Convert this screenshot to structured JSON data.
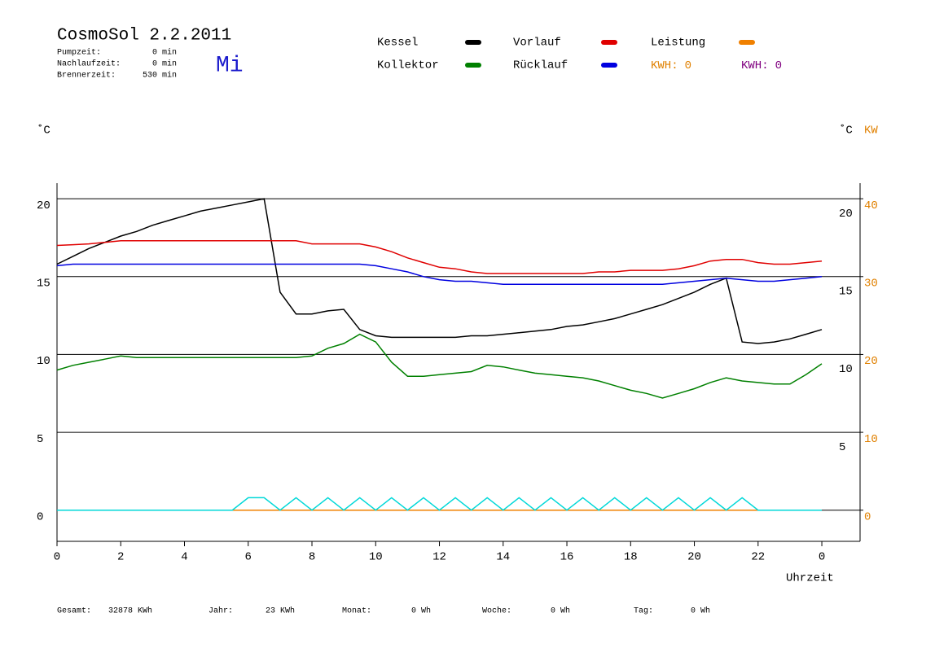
{
  "header": {
    "title": "CosmoSol 2.2.2011",
    "day": "Mi",
    "stats": [
      {
        "label": "Pumpzeit:",
        "value": "0 min"
      },
      {
        "label": "Nachlaufzeit:",
        "value": "0 min"
      },
      {
        "label": "Brennerzeit:",
        "value": "530 min"
      }
    ]
  },
  "chart_data": {
    "type": "line",
    "y_label": "˚C",
    "y2_label_left": "˚C",
    "y2_label": "KW",
    "x_label": "Uhrzeit",
    "x": [
      0,
      0.5,
      1,
      1.5,
      2,
      2.5,
      3,
      3.5,
      4,
      4.5,
      5,
      5.5,
      6,
      6.5,
      7,
      7.5,
      8,
      8.5,
      9,
      9.5,
      10,
      10.5,
      11,
      11.5,
      12,
      12.5,
      13,
      13.5,
      14,
      14.5,
      15,
      15.5,
      16,
      16.5,
      17,
      17.5,
      18,
      18.5,
      19,
      19.5,
      20,
      20.5,
      21,
      21.5,
      22,
      22.5,
      23,
      23.5,
      24
    ],
    "xlim": [
      0,
      25.2
    ],
    "xticks": [
      0,
      2,
      4,
      6,
      8,
      10,
      12,
      14,
      16,
      18,
      20,
      22,
      {
        "value": 24,
        "label": "0"
      }
    ],
    "ylim": [
      -2,
      21
    ],
    "yticks": [
      0,
      5,
      10,
      15,
      20
    ],
    "y3ticks": [
      5,
      10,
      15,
      20
    ],
    "y2lim": [
      -4,
      42
    ],
    "y2ticks": [
      0,
      10,
      20,
      30,
      40
    ],
    "y2color": "#e08000",
    "series": [
      {
        "name": "Kessel",
        "color": "#000000",
        "values": [
          15.8,
          16.3,
          16.8,
          17.2,
          17.6,
          17.9,
          18.3,
          18.6,
          18.9,
          19.2,
          19.4,
          19.6,
          19.8,
          20.0,
          14.0,
          12.6,
          12.6,
          12.8,
          12.9,
          11.6,
          11.2,
          11.1,
          11.1,
          11.1,
          11.1,
          11.1,
          11.2,
          11.2,
          11.3,
          11.4,
          11.5,
          11.6,
          11.8,
          11.9,
          12.1,
          12.3,
          12.6,
          12.9,
          13.2,
          13.6,
          14.0,
          14.5,
          14.9,
          10.8,
          10.7,
          10.8,
          11.0,
          11.3,
          11.6
        ]
      },
      {
        "name": "Vorlauf",
        "color": "#e00000",
        "values": [
          17.0,
          17.05,
          17.1,
          17.2,
          17.3,
          17.3,
          17.3,
          17.3,
          17.3,
          17.3,
          17.3,
          17.3,
          17.3,
          17.3,
          17.3,
          17.3,
          17.1,
          17.1,
          17.1,
          17.1,
          16.9,
          16.6,
          16.2,
          15.9,
          15.6,
          15.5,
          15.3,
          15.2,
          15.2,
          15.2,
          15.2,
          15.2,
          15.2,
          15.2,
          15.3,
          15.3,
          15.4,
          15.4,
          15.4,
          15.5,
          15.7,
          16.0,
          16.1,
          16.1,
          15.9,
          15.8,
          15.8,
          15.9,
          16.0
        ]
      },
      {
        "name": "Leistung",
        "color": "#f08000",
        "axis": "y2",
        "values": [
          0,
          0,
          0,
          0,
          0,
          0,
          0,
          0,
          0,
          0,
          0,
          0,
          0,
          0,
          0,
          0,
          0,
          0,
          0,
          0,
          0,
          0,
          0,
          0,
          0,
          0,
          0,
          0,
          0,
          0,
          0,
          0,
          0,
          0,
          0,
          0,
          0,
          0,
          0,
          0,
          0,
          0,
          0,
          0,
          0,
          0,
          0,
          0,
          0
        ]
      },
      {
        "name": "Kollektor",
        "color": "#008000",
        "values": [
          9.0,
          9.3,
          9.5,
          9.7,
          9.9,
          9.8,
          9.8,
          9.8,
          9.8,
          9.8,
          9.8,
          9.8,
          9.8,
          9.8,
          9.8,
          9.8,
          9.9,
          10.4,
          10.7,
          11.3,
          10.8,
          9.5,
          8.6,
          8.6,
          8.7,
          8.8,
          8.9,
          9.3,
          9.2,
          9.0,
          8.8,
          8.7,
          8.6,
          8.5,
          8.3,
          8.0,
          7.7,
          7.5,
          7.2,
          7.5,
          7.8,
          8.2,
          8.5,
          8.3,
          8.2,
          8.1,
          8.1,
          8.7,
          9.4
        ]
      },
      {
        "name": "Rücklauf",
        "color": "#0000e0",
        "values": [
          15.7,
          15.8,
          15.8,
          15.8,
          15.8,
          15.8,
          15.8,
          15.8,
          15.8,
          15.8,
          15.8,
          15.8,
          15.8,
          15.8,
          15.8,
          15.8,
          15.8,
          15.8,
          15.8,
          15.8,
          15.7,
          15.5,
          15.3,
          15.0,
          14.8,
          14.7,
          14.7,
          14.6,
          14.5,
          14.5,
          14.5,
          14.5,
          14.5,
          14.5,
          14.5,
          14.5,
          14.5,
          14.5,
          14.5,
          14.6,
          14.7,
          14.8,
          14.9,
          14.8,
          14.7,
          14.7,
          14.8,
          14.9,
          15.0
        ]
      },
      {
        "color": "#00d8d8",
        "values": [
          0,
          0,
          0,
          0,
          0,
          0,
          0,
          0,
          0,
          0,
          0,
          0,
          0.8,
          0.8,
          0,
          0.8,
          0,
          0.8,
          0,
          0.8,
          0,
          0.8,
          0,
          0.8,
          0,
          0.8,
          0,
          0.8,
          0,
          0.8,
          0,
          0.8,
          0,
          0.8,
          0,
          0.8,
          0,
          0.8,
          0,
          0.8,
          0,
          0.8,
          0,
          0.8,
          0,
          0,
          0,
          0,
          0
        ]
      }
    ],
    "kwh": [
      {
        "label": "KWH:",
        "value": 0,
        "color": "#e08000"
      },
      {
        "label": "KWH:",
        "value": 0,
        "color": "#800080"
      }
    ]
  },
  "footer": [
    {
      "label": "Gesamt:",
      "value": "32878 KWh"
    },
    {
      "label": "Jahr:",
      "value": "23 KWh"
    },
    {
      "label": "Monat:",
      "value": "0 Wh"
    },
    {
      "label": "Woche:",
      "value": "0 Wh"
    },
    {
      "label": "Tag:",
      "value": "0 Wh"
    }
  ]
}
